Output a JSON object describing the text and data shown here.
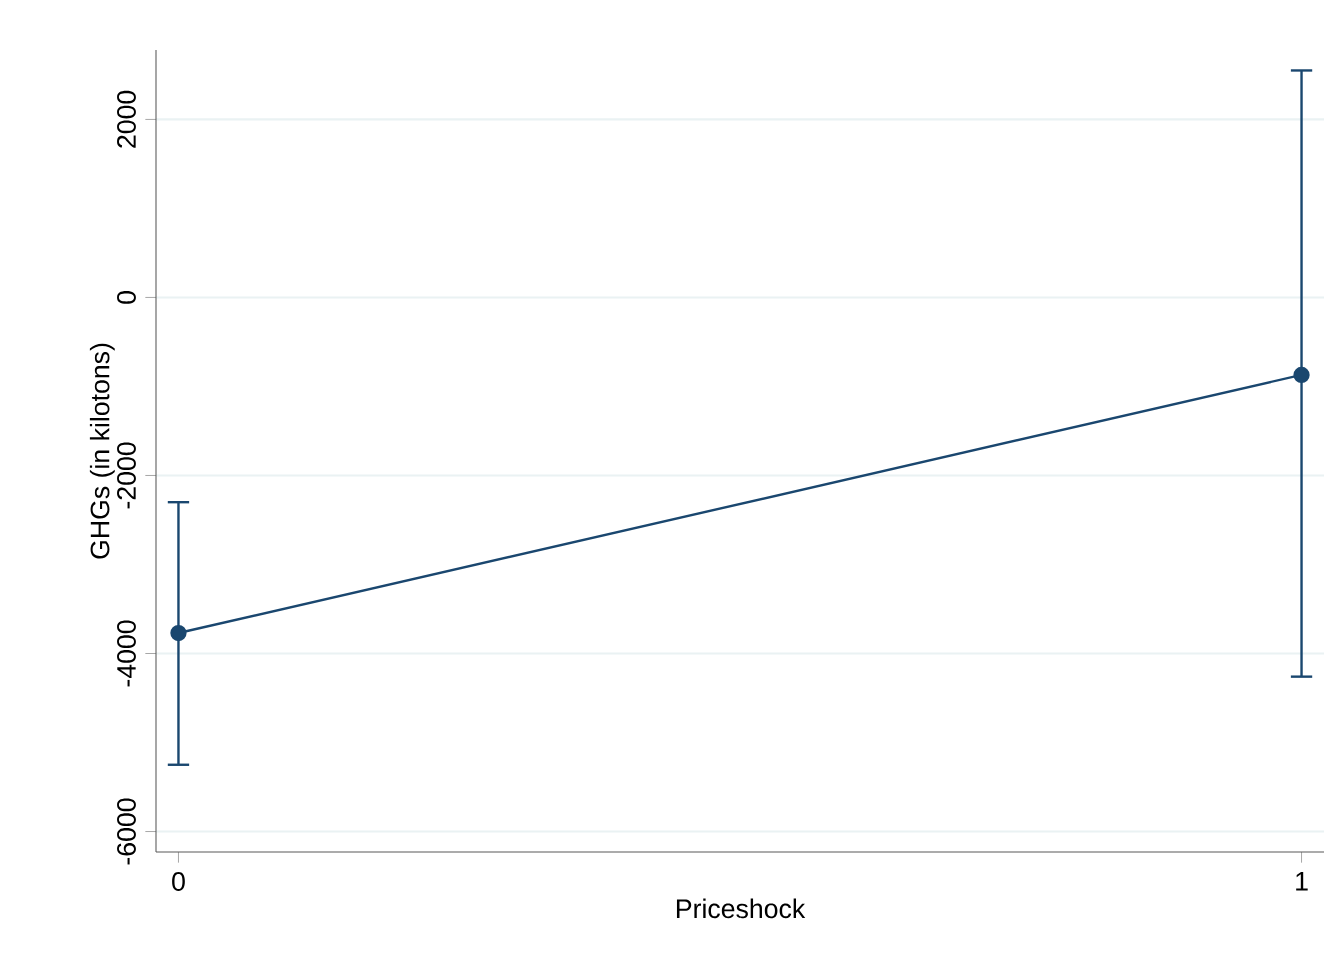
{
  "chart_data": {
    "type": "line",
    "xlabel": "Priceshock",
    "ylabel": "GHGs (in kilotons)",
    "x": [
      0,
      1
    ],
    "values": [
      -3770,
      -870
    ],
    "errors": [
      [
        -5250,
        -2300
      ],
      [
        -4260,
        2550
      ]
    ],
    "color": "#1a476f",
    "marker": "circle",
    "xlim": [
      -0.02,
      1.02
    ],
    "ylim": [
      -6230,
      2780
    ],
    "xticks": [
      0,
      1
    ],
    "yticks": [
      -6000,
      -4000,
      -2000,
      0,
      2000
    ],
    "grid": "y"
  }
}
